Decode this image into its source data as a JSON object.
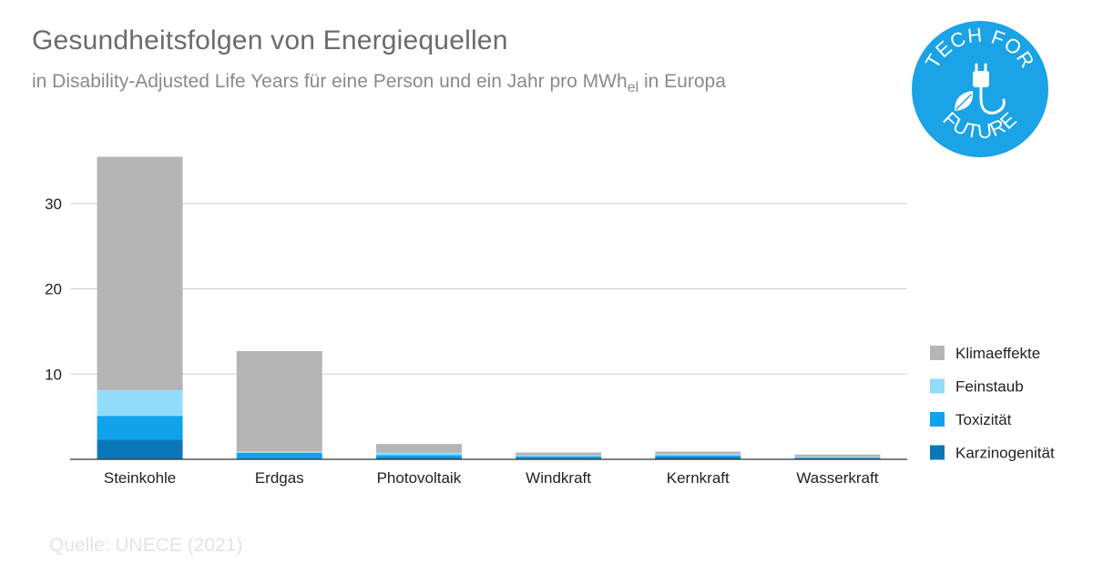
{
  "header": {
    "title": "Gesundheitsfolgen von Energiequellen",
    "subtitle_pre": "in Disability-Adjusted Life Years für eine Person und ein Jahr pro MWh",
    "subtitle_sub": "el",
    "subtitle_post": " in Europa"
  },
  "source": "Quelle: UNECE (2021)",
  "logo": {
    "top_text": "TECH FOR",
    "bottom_text": "FUTURE",
    "icon": "plug-leaf-icon",
    "color": "#1aa3e6"
  },
  "colors": {
    "Karzinogenität": "#0a78b8",
    "Toxizität": "#11a2ec",
    "Feinstaub": "#91dcfa",
    "Klimaeffekte": "#b5b5b5"
  },
  "chart_data": {
    "type": "bar",
    "stacked": true,
    "title": "Gesundheitsfolgen von Energiequellen",
    "subtitle": "in Disability-Adjusted Life Years für eine Person und ein Jahr pro MWhel in Europa",
    "categories": [
      "Steinkohle",
      "Erdgas",
      "Photovoltaik",
      "Windkraft",
      "Kernkraft",
      "Wasserkraft"
    ],
    "series": [
      {
        "name": "Karzinogenität",
        "values": [
          2.3,
          0.1,
          0.2,
          0.15,
          0.25,
          0.1
        ]
      },
      {
        "name": "Toxizität",
        "values": [
          2.8,
          0.65,
          0.3,
          0.2,
          0.2,
          0.1
        ]
      },
      {
        "name": "Feinstaub",
        "values": [
          3.0,
          0.2,
          0.3,
          0.1,
          0.15,
          0.1
        ]
      },
      {
        "name": "Klimaeffekte",
        "values": [
          27.4,
          11.75,
          1.0,
          0.35,
          0.3,
          0.25
        ]
      }
    ],
    "ylim": [
      0,
      35
    ],
    "yticks": [
      10,
      20,
      30
    ],
    "grid": true,
    "legend": "right",
    "xlabel": "",
    "ylabel": ""
  }
}
